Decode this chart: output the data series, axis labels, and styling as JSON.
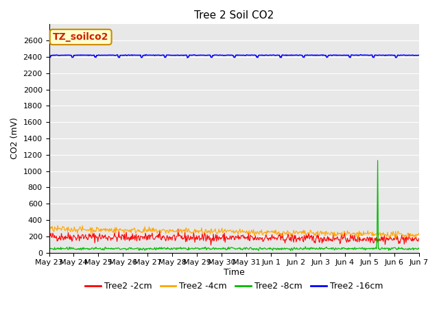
{
  "title": "Tree 2 Soil CO2",
  "ylabel": "CO2 (mV)",
  "xlabel": "Time",
  "annotation": "TZ_soilco2",
  "ylim": [
    0,
    2800
  ],
  "yticks": [
    0,
    200,
    400,
    600,
    800,
    1000,
    1200,
    1400,
    1600,
    1800,
    2000,
    2200,
    2400,
    2600
  ],
  "x_labels": [
    "May 23",
    "May 24",
    "May 25",
    "May 26",
    "May 27",
    "May 28",
    "May 29",
    "May 30",
    "May 31",
    "Jun 1",
    "Jun 2",
    "Jun 3",
    "Jun 4",
    "Jun 5",
    "Jun 6",
    "Jun 7"
  ],
  "series_colors": [
    "#ff0000",
    "#ffa500",
    "#00bb00",
    "#0000ff"
  ],
  "series_labels": [
    "Tree2 -2cm",
    "Tree2 -4cm",
    "Tree2 -8cm",
    "Tree2 -16cm"
  ],
  "background_color": "#e8e8e8",
  "title_fontsize": 11,
  "axis_fontsize": 9,
  "tick_fontsize": 8,
  "legend_fontsize": 9,
  "num_points": 600
}
